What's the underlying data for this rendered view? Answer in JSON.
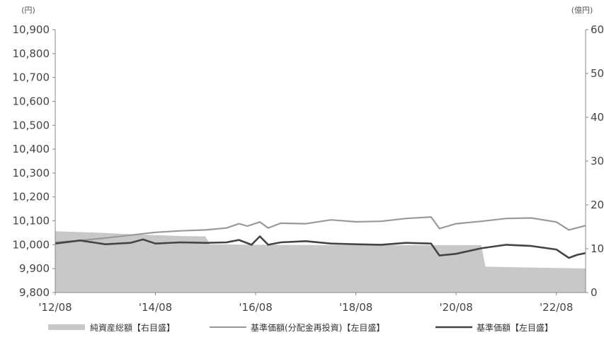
{
  "chart_data": {
    "type": "line",
    "title": "",
    "left_unit": "(円)",
    "right_unit": "(億円)",
    "x_ticks": [
      "'12/08",
      "'14/08",
      "'16/08",
      "'18/08",
      "'20/08",
      "'22/08"
    ],
    "x_range": [
      "2012-08",
      "2023-03"
    ],
    "left_axis": {
      "min": 9800,
      "max": 10900,
      "ticks": [
        "9,800",
        "9,900",
        "10,000",
        "10,100",
        "10,200",
        "10,300",
        "10,400",
        "10,500",
        "10,600",
        "10,700",
        "10,800",
        "10,900"
      ]
    },
    "right_axis": {
      "min": 0,
      "max": 60,
      "ticks": [
        "0",
        "10",
        "20",
        "30",
        "40",
        "50",
        "60"
      ]
    },
    "grid": false,
    "legend_position": "bottom",
    "series": [
      {
        "name": "純資産総額【右目盛】",
        "kind": "area",
        "axis": "right",
        "color": "#c8c8c8",
        "points": [
          [
            "2012-08",
            14.0
          ],
          [
            "2013-08",
            13.6
          ],
          [
            "2014-02",
            13.3
          ],
          [
            "2014-08",
            13.1
          ],
          [
            "2015-02",
            12.9
          ],
          [
            "2015-08",
            12.8
          ],
          [
            "2015-09",
            11.0
          ],
          [
            "2016-08",
            10.9
          ],
          [
            "2018-08",
            10.8
          ],
          [
            "2020-08",
            10.8
          ],
          [
            "2021-02",
            10.8
          ],
          [
            "2021-03",
            5.9
          ],
          [
            "2022-08",
            5.6
          ],
          [
            "2023-03",
            5.5
          ]
        ]
      },
      {
        "name": "基準価額(分配金再投資)【左目盛】",
        "kind": "line",
        "axis": "left",
        "color": "#999999",
        "points": [
          [
            "2012-08",
            10010
          ],
          [
            "2013-02",
            10018
          ],
          [
            "2013-08",
            10028
          ],
          [
            "2014-02",
            10040
          ],
          [
            "2014-08",
            10052
          ],
          [
            "2015-02",
            10058
          ],
          [
            "2015-08",
            10062
          ],
          [
            "2016-01",
            10070
          ],
          [
            "2016-04",
            10088
          ],
          [
            "2016-06",
            10078
          ],
          [
            "2016-09",
            10095
          ],
          [
            "2016-11",
            10070
          ],
          [
            "2017-02",
            10090
          ],
          [
            "2017-08",
            10088
          ],
          [
            "2018-02",
            10104
          ],
          [
            "2018-08",
            10096
          ],
          [
            "2019-02",
            10098
          ],
          [
            "2019-08",
            10110
          ],
          [
            "2020-02",
            10116
          ],
          [
            "2020-04",
            10068
          ],
          [
            "2020-08",
            10088
          ],
          [
            "2021-02",
            10098
          ],
          [
            "2021-08",
            10110
          ],
          [
            "2022-02",
            10112
          ],
          [
            "2022-08",
            10095
          ],
          [
            "2022-11",
            10062
          ],
          [
            "2023-03",
            10080
          ]
        ]
      },
      {
        "name": "基準価額【左目盛】",
        "kind": "line",
        "axis": "left",
        "color": "#444444",
        "points": [
          [
            "2012-08",
            10005
          ],
          [
            "2013-02",
            10018
          ],
          [
            "2013-05",
            10010
          ],
          [
            "2013-08",
            10002
          ],
          [
            "2014-02",
            10008
          ],
          [
            "2014-05",
            10022
          ],
          [
            "2014-08",
            10005
          ],
          [
            "2015-02",
            10010
          ],
          [
            "2015-08",
            10008
          ],
          [
            "2016-01",
            10010
          ],
          [
            "2016-04",
            10020
          ],
          [
            "2016-07",
            10000
          ],
          [
            "2016-09",
            10035
          ],
          [
            "2016-11",
            10000
          ],
          [
            "2017-02",
            10010
          ],
          [
            "2017-08",
            10015
          ],
          [
            "2018-02",
            10005
          ],
          [
            "2018-08",
            10002
          ],
          [
            "2019-02",
            10000
          ],
          [
            "2019-08",
            10008
          ],
          [
            "2020-02",
            10005
          ],
          [
            "2020-04",
            9955
          ],
          [
            "2020-08",
            9962
          ],
          [
            "2021-02",
            9985
          ],
          [
            "2021-08",
            10000
          ],
          [
            "2022-02",
            9995
          ],
          [
            "2022-08",
            9980
          ],
          [
            "2022-11",
            9945
          ],
          [
            "2023-01",
            9958
          ],
          [
            "2023-03",
            9965
          ]
        ]
      }
    ]
  }
}
